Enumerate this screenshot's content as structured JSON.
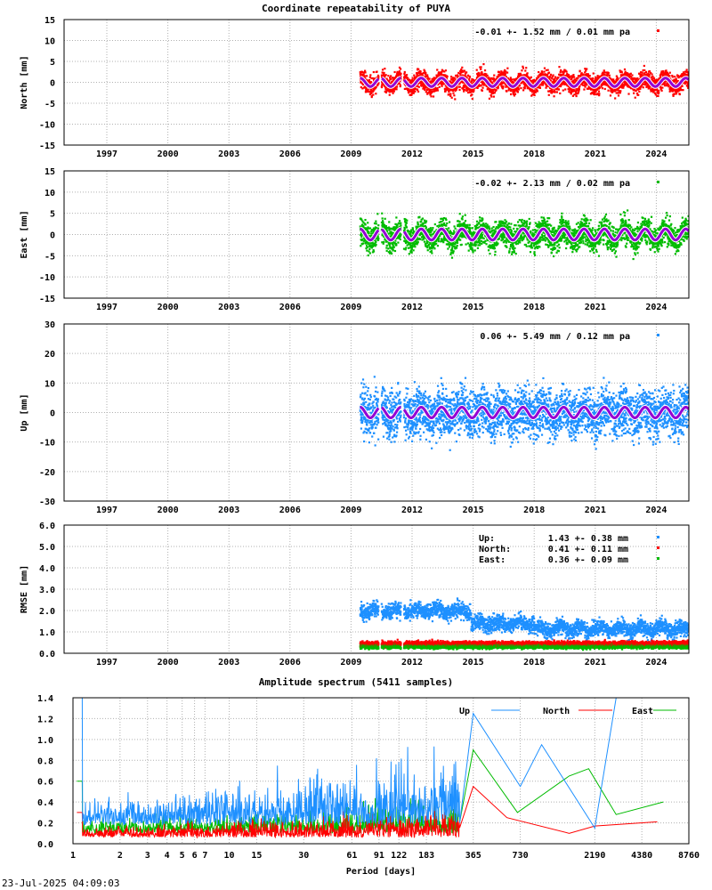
{
  "header": {
    "title": "Coordinate repeatability of PUYA",
    "spectrum_title": "Amplitude spectrum (5411 samples)",
    "timestamp": "23-Jul-2025 04:09:03"
  },
  "colors": {
    "north": "#ff0000",
    "east": "#00bb00",
    "up": "#1e90ff",
    "model": "#9400d3",
    "grid": "#b0b0b0"
  },
  "chart_data": [
    {
      "type": "scatter",
      "panel": "north",
      "ylabel": "North [mm]",
      "ylim": [
        -15,
        15
      ],
      "yticks": [
        -15,
        -10,
        -5,
        0,
        5,
        10,
        15
      ],
      "xlim": [
        1994.9,
        2025.6
      ],
      "xticks": [
        1997,
        2000,
        2003,
        2006,
        2009,
        2012,
        2015,
        2018,
        2021,
        2024
      ],
      "data_start": 2009.45,
      "data_end": 2025.6,
      "gaps": [
        [
          2010.35,
          2010.5
        ],
        [
          2011.45,
          2011.6
        ]
      ],
      "noise_sd": 1.52,
      "annual_amplitude": 1.0,
      "annotation": "-0.01 +- 1.52 mm /  0.01 mm pa",
      "grid": true
    },
    {
      "type": "scatter",
      "panel": "east",
      "ylabel": "East [mm]",
      "ylim": [
        -15,
        15
      ],
      "yticks": [
        -15,
        -10,
        -5,
        0,
        5,
        10,
        15
      ],
      "xlim": [
        1994.9,
        2025.6
      ],
      "xticks": [
        1997,
        2000,
        2003,
        2006,
        2009,
        2012,
        2015,
        2018,
        2021,
        2024
      ],
      "data_start": 2009.45,
      "data_end": 2025.6,
      "gaps": [
        [
          2010.35,
          2010.5
        ],
        [
          2011.45,
          2011.6
        ]
      ],
      "noise_sd": 2.13,
      "annual_amplitude": 1.3,
      "annotation": "-0.02 +- 2.13 mm /  0.02 mm pa",
      "grid": true
    },
    {
      "type": "scatter",
      "panel": "up",
      "ylabel": "Up [mm]",
      "ylim": [
        -30,
        30
      ],
      "yticks": [
        -30,
        -20,
        -10,
        0,
        10,
        20,
        30
      ],
      "xlim": [
        1994.9,
        2025.6
      ],
      "xticks": [
        1997,
        2000,
        2003,
        2006,
        2009,
        2012,
        2015,
        2018,
        2021,
        2024
      ],
      "data_start": 2009.45,
      "data_end": 2025.6,
      "gaps": [
        [
          2010.35,
          2010.5
        ],
        [
          2011.45,
          2011.6
        ]
      ],
      "noise_sd": 5.49,
      "annual_amplitude": 1.8,
      "annotation": "0.06 +- 5.49 mm /  0.12 mm pa",
      "grid": true
    },
    {
      "type": "scatter",
      "panel": "rmse",
      "ylabel": "RMSE [mm]",
      "ylim": [
        0,
        6
      ],
      "yticks": [
        "0.0",
        "1.0",
        "2.0",
        "3.0",
        "4.0",
        "5.0",
        "6.0"
      ],
      "xlim": [
        1994.9,
        2025.6
      ],
      "xticks": [
        1997,
        2000,
        2003,
        2006,
        2009,
        2012,
        2015,
        2018,
        2021,
        2024
      ],
      "data_start": 2009.45,
      "data_end": 2025.6,
      "gaps": [
        [
          2010.35,
          2010.5
        ],
        [
          2011.45,
          2011.6
        ]
      ],
      "legend": [
        {
          "label": "Up:",
          "value": "1.43 +- 0.38 mm",
          "series": "up"
        },
        {
          "label": "North:",
          "value": "0.41 +- 0.11 mm",
          "series": "north"
        },
        {
          "label": "East:",
          "value": "0.36 +- 0.09 mm",
          "series": "east"
        }
      ],
      "up_levels": [
        [
          2009.45,
          2014.9,
          2.0
        ],
        [
          2014.9,
          2018.0,
          1.4
        ],
        [
          2018.0,
          2025.6,
          1.15
        ]
      ],
      "north_level": 0.45,
      "east_level": 0.32,
      "grid": true
    },
    {
      "type": "line",
      "panel": "spectrum",
      "title": "Amplitude spectrum (5411 samples)",
      "xlabel": "Period [days]",
      "xscale": "log",
      "xlim": [
        1,
        8760
      ],
      "xticks": [
        1,
        2,
        3,
        4,
        5,
        6,
        7,
        10,
        15,
        30,
        61,
        91,
        122,
        183,
        365,
        730,
        2190,
        4380,
        8760
      ],
      "ylim": [
        0,
        1.4
      ],
      "yticks": [
        "0.0",
        "0.2",
        "0.4",
        "0.6",
        "0.8",
        "1.0",
        "1.2",
        "1.4"
      ],
      "legend_position": "top-right",
      "series": [
        {
          "name": "Up",
          "color_key": "up",
          "peaks": [
            [
              365,
              1.25
            ],
            [
              730,
              0.55
            ],
            [
              1000,
              0.95
            ],
            [
              2190,
              0.15
            ],
            [
              3000,
              1.4
            ]
          ]
        },
        {
          "name": "North",
          "color_key": "north",
          "peaks": [
            [
              365,
              0.55
            ],
            [
              600,
              0.25
            ],
            [
              1500,
              0.1
            ],
            [
              2190,
              0.17
            ],
            [
              5500,
              0.21
            ]
          ]
        },
        {
          "name": "East",
          "color_key": "east",
          "peaks": [
            [
              365,
              0.9
            ],
            [
              700,
              0.3
            ],
            [
              1500,
              0.65
            ],
            [
              2000,
              0.72
            ],
            [
              3000,
              0.28
            ],
            [
              6000,
              0.4
            ]
          ]
        }
      ],
      "grid": true
    }
  ]
}
